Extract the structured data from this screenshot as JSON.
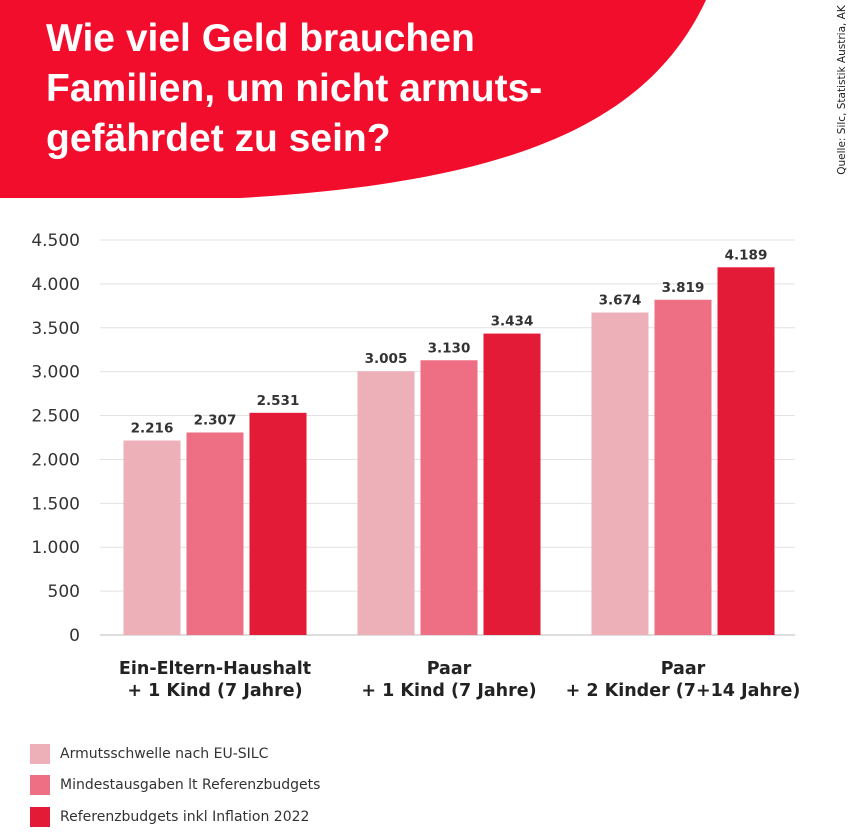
{
  "header": {
    "title": "Wie viel Geld brauchen Familien, um nicht armuts-gefährdet zu sein?",
    "source": "Quelle: Silc, Statistik Austria, AK",
    "color": "#f20d2c"
  },
  "chart_data": {
    "type": "bar",
    "title": "Wie viel Geld brauchen Familien, um nicht armuts-gefährdet zu sein?",
    "categories": [
      [
        "Ein-Eltern-Haushalt",
        "+ 1 Kind (7 Jahre)"
      ],
      [
        "Paar",
        "+ 1 Kind (7 Jahre)"
      ],
      [
        "Paar",
        "+ 2 Kinder (7+14 Jahre)"
      ]
    ],
    "series": [
      {
        "name": "Armutsschwelle nach EU-SILC",
        "color": "#edb0b9",
        "values": [
          2216,
          3005,
          3674
        ],
        "labels": [
          "2.216",
          "3.005",
          "3.674"
        ]
      },
      {
        "name": "Mindestausgaben lt Referenzbudgets",
        "color": "#ee6f84",
        "values": [
          2307,
          3130,
          3819
        ],
        "labels": [
          "2.307",
          "3.130",
          "3.819"
        ]
      },
      {
        "name": "Referenzbudgets inkl Inflation 2022",
        "color": "#e31b37",
        "values": [
          2531,
          3434,
          4189
        ],
        "labels": [
          "2.531",
          "3.434",
          "4.189"
        ]
      }
    ],
    "yticks": [
      0,
      500,
      1000,
      1500,
      2000,
      2500,
      3000,
      3500,
      4000,
      4500
    ],
    "ytick_labels": [
      "0",
      "500",
      "1.000",
      "1.500",
      "2.000",
      "2.500",
      "3.000",
      "3.500",
      "4.000",
      "4.500"
    ],
    "ylim": [
      0,
      4500
    ],
    "xlabel": "",
    "ylabel": "",
    "grid": true,
    "legend": "bottom-left"
  }
}
